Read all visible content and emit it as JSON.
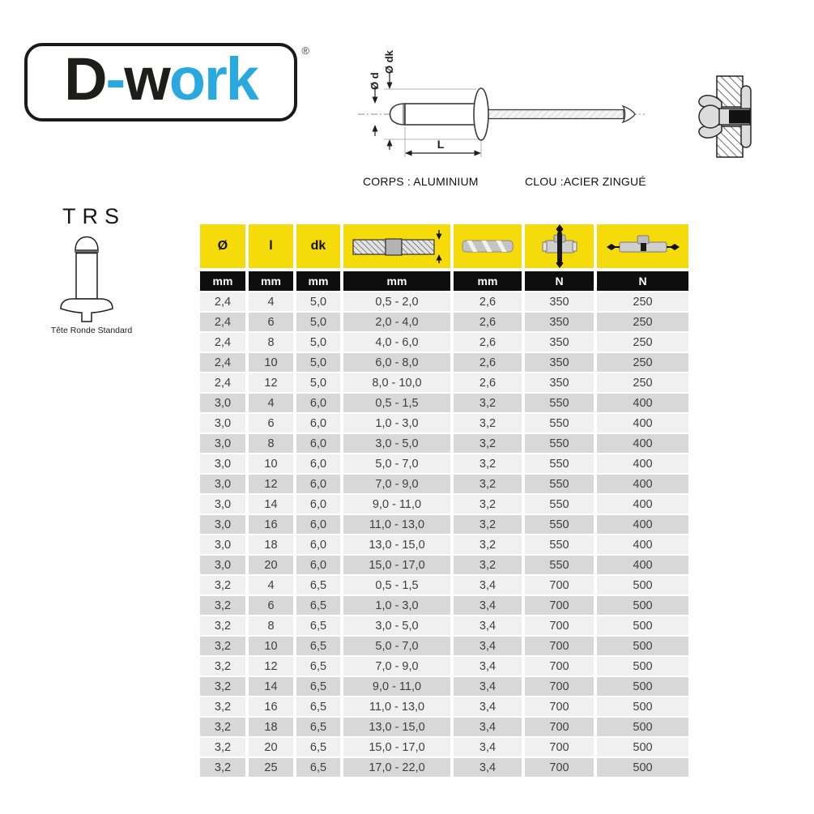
{
  "logo": {
    "black_1": "D",
    "blue_1": "-",
    "black_2": "w",
    "blue_2": "ork",
    "registered_mark": "®",
    "blue_color": "#2aa9e0"
  },
  "diagram": {
    "label_diameter": "Ø d",
    "label_head_diameter": "Ø dk",
    "label_length": "L",
    "caption_body": "CORPS : ALUMINIUM",
    "caption_nail": "CLOU :ACIER ZINGUÉ"
  },
  "product": {
    "code": "TRS",
    "head_name": "Tête Ronde Standard"
  },
  "table": {
    "text_columns": [
      "Ø",
      "l",
      "dk"
    ],
    "icon_columns": [
      "grip-range-icon",
      "drill-bit-icon",
      "shear-strength-icon",
      "tensile-strength-icon"
    ],
    "units": [
      "mm",
      "mm",
      "mm",
      "mm",
      "mm",
      "N",
      "N"
    ],
    "rows": [
      [
        "2,4",
        "4",
        "5,0",
        "0,5 - 2,0",
        "2,6",
        "350",
        "250"
      ],
      [
        "2,4",
        "6",
        "5,0",
        "2,0 - 4,0",
        "2,6",
        "350",
        "250"
      ],
      [
        "2,4",
        "8",
        "5,0",
        "4,0 - 6,0",
        "2,6",
        "350",
        "250"
      ],
      [
        "2,4",
        "10",
        "5,0",
        "6,0 - 8,0",
        "2,6",
        "350",
        "250"
      ],
      [
        "2,4",
        "12",
        "5,0",
        "8,0 - 10,0",
        "2,6",
        "350",
        "250"
      ],
      [
        "3,0",
        "4",
        "6,0",
        "0,5 - 1,5",
        "3,2",
        "550",
        "400"
      ],
      [
        "3,0",
        "6",
        "6,0",
        "1,0 - 3,0",
        "3,2",
        "550",
        "400"
      ],
      [
        "3,0",
        "8",
        "6,0",
        "3,0 - 5,0",
        "3,2",
        "550",
        "400"
      ],
      [
        "3,0",
        "10",
        "6,0",
        "5,0 - 7,0",
        "3,2",
        "550",
        "400"
      ],
      [
        "3,0",
        "12",
        "6,0",
        "7,0 - 9,0",
        "3,2",
        "550",
        "400"
      ],
      [
        "3,0",
        "14",
        "6,0",
        "9,0 - 11,0",
        "3,2",
        "550",
        "400"
      ],
      [
        "3,0",
        "16",
        "6,0",
        "11,0 - 13,0",
        "3,2",
        "550",
        "400"
      ],
      [
        "3,0",
        "18",
        "6,0",
        "13,0 - 15,0",
        "3,2",
        "550",
        "400"
      ],
      [
        "3,0",
        "20",
        "6,0",
        "15,0 - 17,0",
        "3,2",
        "550",
        "400"
      ],
      [
        "3,2",
        "4",
        "6,5",
        "0,5 - 1,5",
        "3,4",
        "700",
        "500"
      ],
      [
        "3,2",
        "6",
        "6,5",
        "1,0 - 3,0",
        "3,4",
        "700",
        "500"
      ],
      [
        "3,2",
        "8",
        "6,5",
        "3,0 - 5,0",
        "3,4",
        "700",
        "500"
      ],
      [
        "3,2",
        "10",
        "6,5",
        "5,0 - 7,0",
        "3,4",
        "700",
        "500"
      ],
      [
        "3,2",
        "12",
        "6,5",
        "7,0 - 9,0",
        "3,4",
        "700",
        "500"
      ],
      [
        "3,2",
        "14",
        "6,5",
        "9,0 - 11,0",
        "3,4",
        "700",
        "500"
      ],
      [
        "3,2",
        "16",
        "6,5",
        "11,0 - 13,0",
        "3,4",
        "700",
        "500"
      ],
      [
        "3,2",
        "18",
        "6,5",
        "13,0 - 15,0",
        "3,4",
        "700",
        "500"
      ],
      [
        "3,2",
        "20",
        "6,5",
        "15,0 - 17,0",
        "3,4",
        "700",
        "500"
      ],
      [
        "3,2",
        "25",
        "6,5",
        "17,0 - 22,0",
        "3,4",
        "700",
        "500"
      ]
    ],
    "colors": {
      "header_yellow": "#f6db0b",
      "header_black": "#0e0e0e",
      "row_light": "#f0f0f0",
      "row_dark": "#d8d8d8"
    }
  }
}
